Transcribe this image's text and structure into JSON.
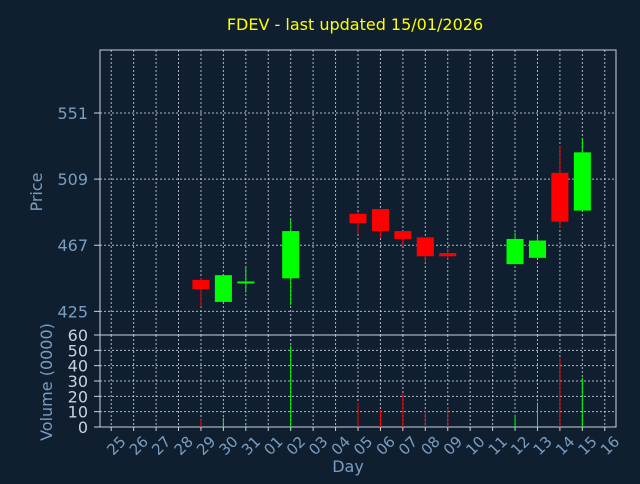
{
  "chart_data": {
    "type": "candlestick",
    "title": "FDEV - last updated 15/01/2026",
    "xlabel": "Day",
    "price_ylabel": "Price",
    "volume_ylabel": "Volume (0000)",
    "price_yticks": [
      "425",
      "467",
      "509",
      "551"
    ],
    "price_ylim": [
      410,
      591
    ],
    "volume_yticks": [
      "0",
      "10",
      "20",
      "30",
      "40",
      "50",
      "60"
    ],
    "volume_ylim": [
      0,
      60
    ],
    "up_color": "#00ff00",
    "down_color": "#ff0000",
    "x_tick_labels": [
      "25",
      "26",
      "27",
      "28",
      "29",
      "30",
      "31",
      "01",
      "02",
      "03",
      "04",
      "05",
      "06",
      "07",
      "08",
      "09",
      "10",
      "11",
      "12",
      "13",
      "14",
      "15",
      "16"
    ],
    "candles": [
      {
        "day": "29",
        "open": 445,
        "high": 446,
        "low": 428,
        "close": 439,
        "volume": 5
      },
      {
        "day": "30",
        "open": 431,
        "high": 448,
        "low": 431,
        "close": 448,
        "volume": 6
      },
      {
        "day": "31",
        "open": 443,
        "high": 453,
        "low": 437,
        "close": 444,
        "volume": 1
      },
      {
        "day": "02",
        "open": 446,
        "high": 483,
        "low": 429,
        "close": 476,
        "volume": 53
      },
      {
        "day": "05",
        "open": 487,
        "high": 488,
        "low": 474,
        "close": 481,
        "volume": 16
      },
      {
        "day": "06",
        "open": 490,
        "high": 490,
        "low": 472,
        "close": 476,
        "volume": 11
      },
      {
        "day": "07",
        "open": 476,
        "high": 476,
        "low": 467,
        "close": 471,
        "volume": 22
      },
      {
        "day": "08",
        "open": 472,
        "high": 472,
        "low": 456,
        "close": 460,
        "volume": 11
      },
      {
        "day": "09",
        "open": 462,
        "high": 465,
        "low": 458,
        "close": 460,
        "volume": 13
      },
      {
        "day": "12",
        "open": 455,
        "high": 475,
        "low": 455,
        "close": 471,
        "volume": 8
      },
      {
        "day": "13",
        "open": 459,
        "high": 473,
        "low": 459,
        "close": 470,
        "volume": 16
      },
      {
        "day": "14",
        "open": 513,
        "high": 530,
        "low": 478,
        "close": 482,
        "volume": 45
      },
      {
        "day": "15",
        "open": 489,
        "high": 535,
        "low": 489,
        "close": 526,
        "volume": 32
      }
    ]
  }
}
